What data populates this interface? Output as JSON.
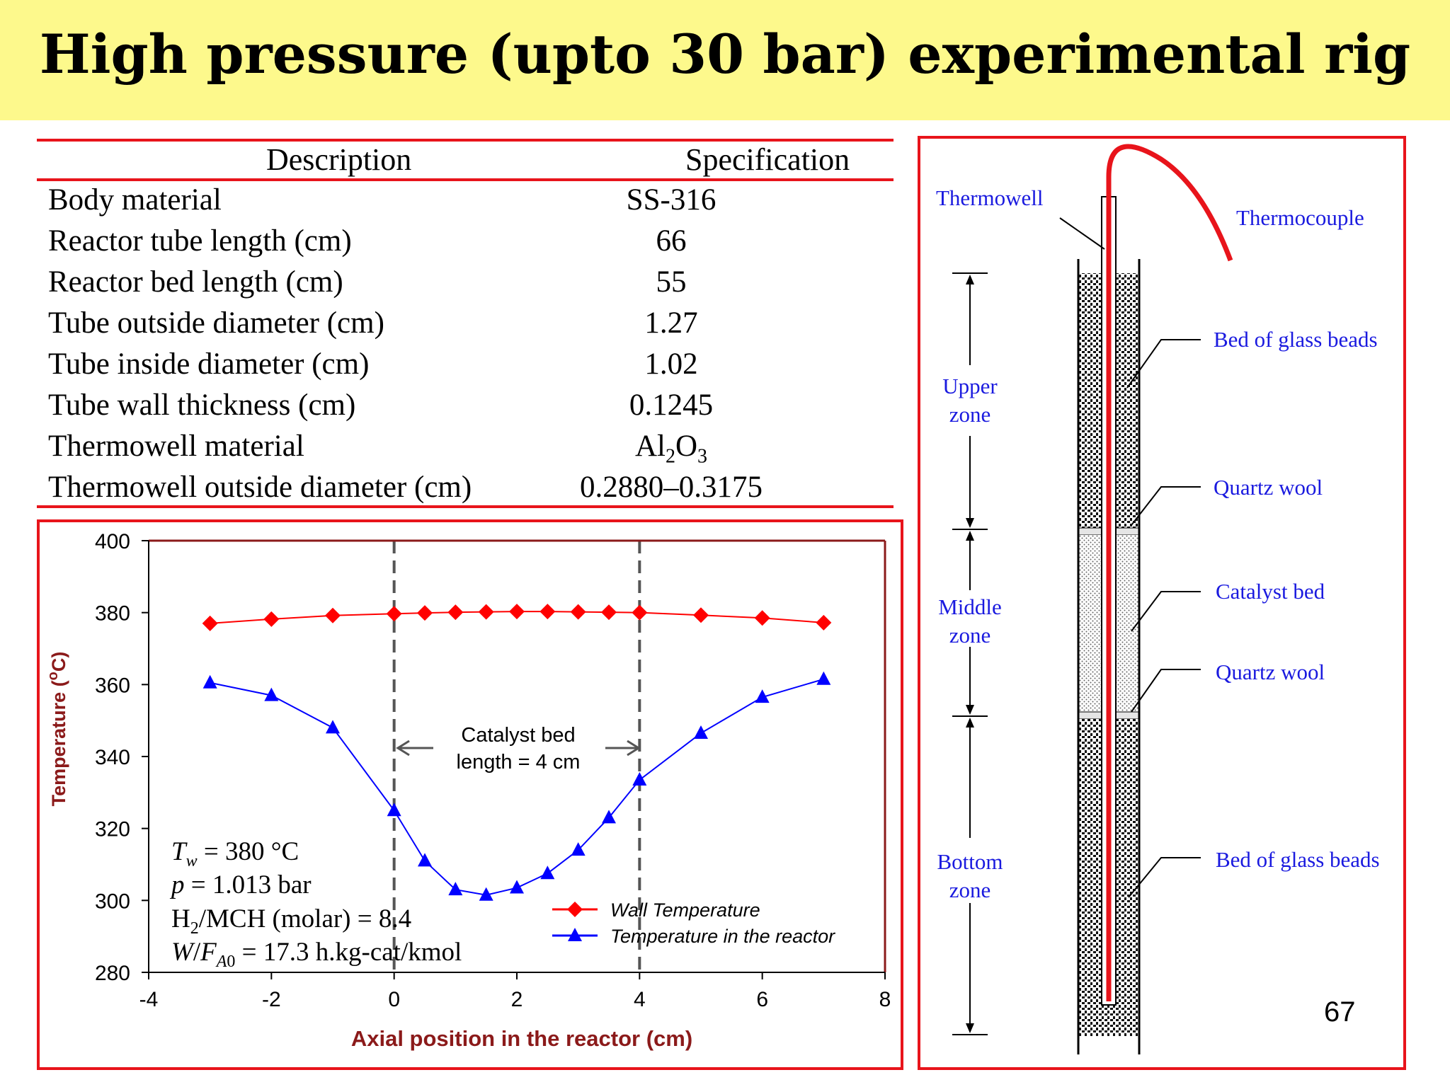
{
  "title": "High pressure (upto 30 bar) experimental rig",
  "page_number": "67",
  "table": {
    "headers": [
      "Description",
      "Specification"
    ],
    "rows": [
      {
        "description": "Body material",
        "specification": "SS-316"
      },
      {
        "description": "Reactor tube length (cm)",
        "specification": "66"
      },
      {
        "description": "Reactor bed length (cm)",
        "specification": "55"
      },
      {
        "description": "Tube outside diameter (cm)",
        "specification": "1.27"
      },
      {
        "description": "Tube inside diameter (cm)",
        "specification": "1.02"
      },
      {
        "description": "Tube wall thickness (cm)",
        "specification": "0.1245"
      },
      {
        "description": "Thermowell material",
        "specification": "Al2O3"
      },
      {
        "description": "Thermowell outside diameter (cm)",
        "specification": "0.2880–0.3175"
      }
    ]
  },
  "chart_data": {
    "type": "line",
    "xlabel": "Axial position in the reactor (cm)",
    "ylabel": "Temperature (oC)",
    "xlim": [
      -4,
      8
    ],
    "ylim": [
      280,
      400
    ],
    "xticks": [
      -4,
      -2,
      0,
      2,
      4,
      6,
      8
    ],
    "yticks": [
      280,
      300,
      320,
      340,
      360,
      380,
      400
    ],
    "legend_position": "bottom-right",
    "series": [
      {
        "name": "Wall Temperature",
        "color": "#ff0000",
        "marker": "diamond",
        "x": [
          -3,
          -2,
          -1,
          0,
          0.5,
          1,
          1.5,
          2,
          2.5,
          3,
          3.5,
          4,
          5,
          6,
          7
        ],
        "y": [
          377,
          378.2,
          379.2,
          379.7,
          379.9,
          380.1,
          380.2,
          380.3,
          380.3,
          380.2,
          380.1,
          380,
          379.3,
          378.5,
          377.2
        ]
      },
      {
        "name": "Temperature in the reactor",
        "color": "#0000ff",
        "marker": "triangle",
        "x": [
          -3,
          -2,
          -1,
          0,
          0.5,
          1,
          1.5,
          2,
          2.5,
          3,
          3.5,
          4,
          5,
          6,
          7
        ],
        "y": [
          360.5,
          357,
          348,
          325,
          311,
          303,
          301.5,
          303.5,
          307.5,
          314,
          323,
          333.5,
          346.5,
          356.5,
          361.5
        ]
      }
    ],
    "vlines": [
      0,
      4
    ],
    "annotation": {
      "line1": "Catalyst bed",
      "line2": "length = 4 cm"
    },
    "conditions": [
      "Tw = 380 °C",
      "p = 1.013 bar",
      "H2/MCH  (molar) = 8.4",
      "W/FA0 = 17.3 h.kg-cat/kmol"
    ]
  },
  "diagram": {
    "thermowell": "Thermowell",
    "thermocouple": "Thermocouple",
    "upper_zone": [
      "Upper",
      "zone"
    ],
    "middle_zone": [
      "Middle",
      "zone"
    ],
    "bottom_zone": [
      "Bottom",
      "zone"
    ],
    "bed_glass_upper": "Bed of glass beads",
    "quartz_wool_upper": "Quartz wool",
    "catalyst_bed": "Catalyst bed",
    "quartz_wool_lower": "Quartz wool",
    "bed_glass_lower": "Bed of glass beads",
    "label_color": "#1a1adf",
    "thermocouple_color": "#e8141b"
  },
  "colors": {
    "title_band": "#fdf98c",
    "frame_red": "#e8141b",
    "axis_label": "#8b1a1a"
  }
}
